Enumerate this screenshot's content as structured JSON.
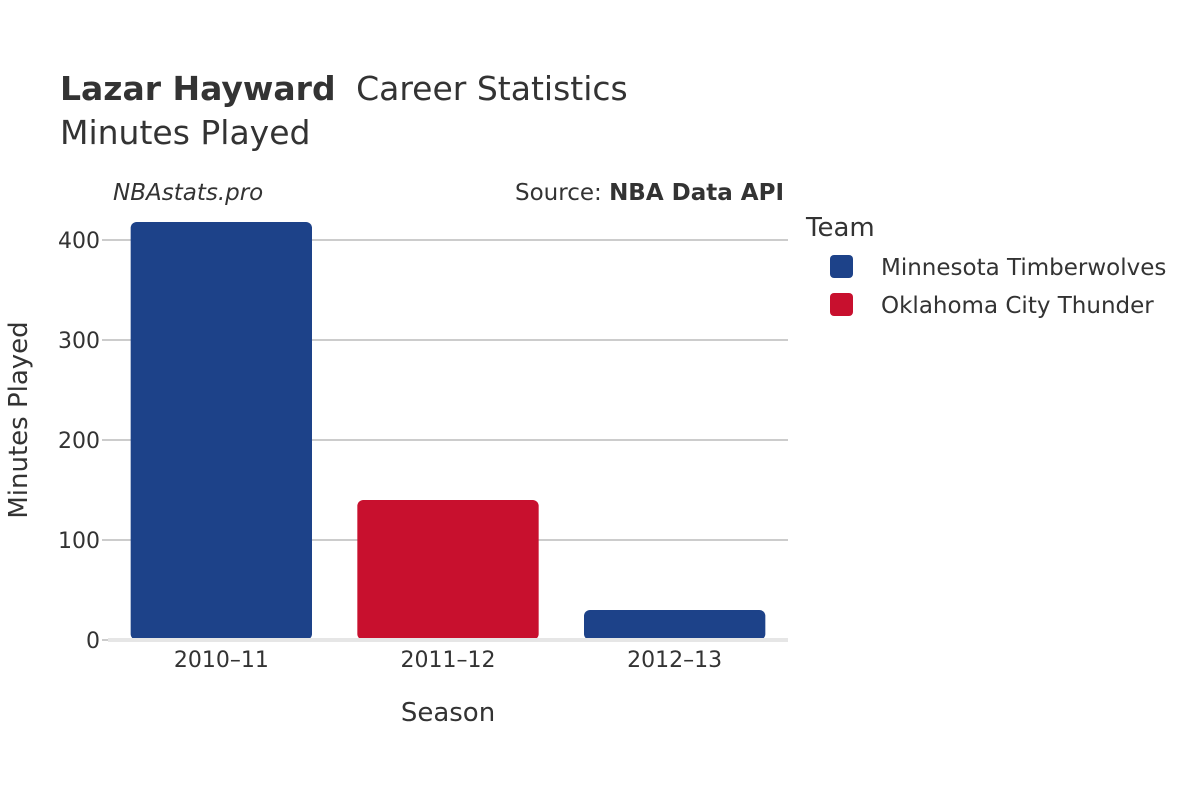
{
  "header": {
    "player_name": "Lazar Hayward",
    "title_suffix": "Career Statistics",
    "subtitle": "Minutes Played"
  },
  "credits": {
    "site": "NBAstats.pro",
    "source_prefix": "Source: ",
    "source_name": "NBA Data API"
  },
  "legend": {
    "title": "Team",
    "items": [
      {
        "label": "Minnesota Timberwolves",
        "color": "#1d4289"
      },
      {
        "label": "Oklahoma City Thunder",
        "color": "#c8102e"
      }
    ]
  },
  "chart_data": {
    "type": "bar",
    "categories": [
      "2010–11",
      "2011–12",
      "2012–13"
    ],
    "values": [
      418,
      140,
      30
    ],
    "bar_teams": [
      "Minnesota Timberwolves",
      "Oklahoma City Thunder",
      "Minnesota Timberwolves"
    ],
    "series": [
      {
        "name": "Minnesota Timberwolves",
        "values": [
          418,
          null,
          30
        ]
      },
      {
        "name": "Oklahoma City Thunder",
        "values": [
          null,
          140,
          null
        ]
      }
    ],
    "xlabel": "Season",
    "ylabel": "Minutes Played",
    "ylim": [
      0,
      420
    ],
    "yticks": [
      0,
      100,
      200,
      300,
      400
    ],
    "grid": true,
    "legend_position": "right"
  }
}
